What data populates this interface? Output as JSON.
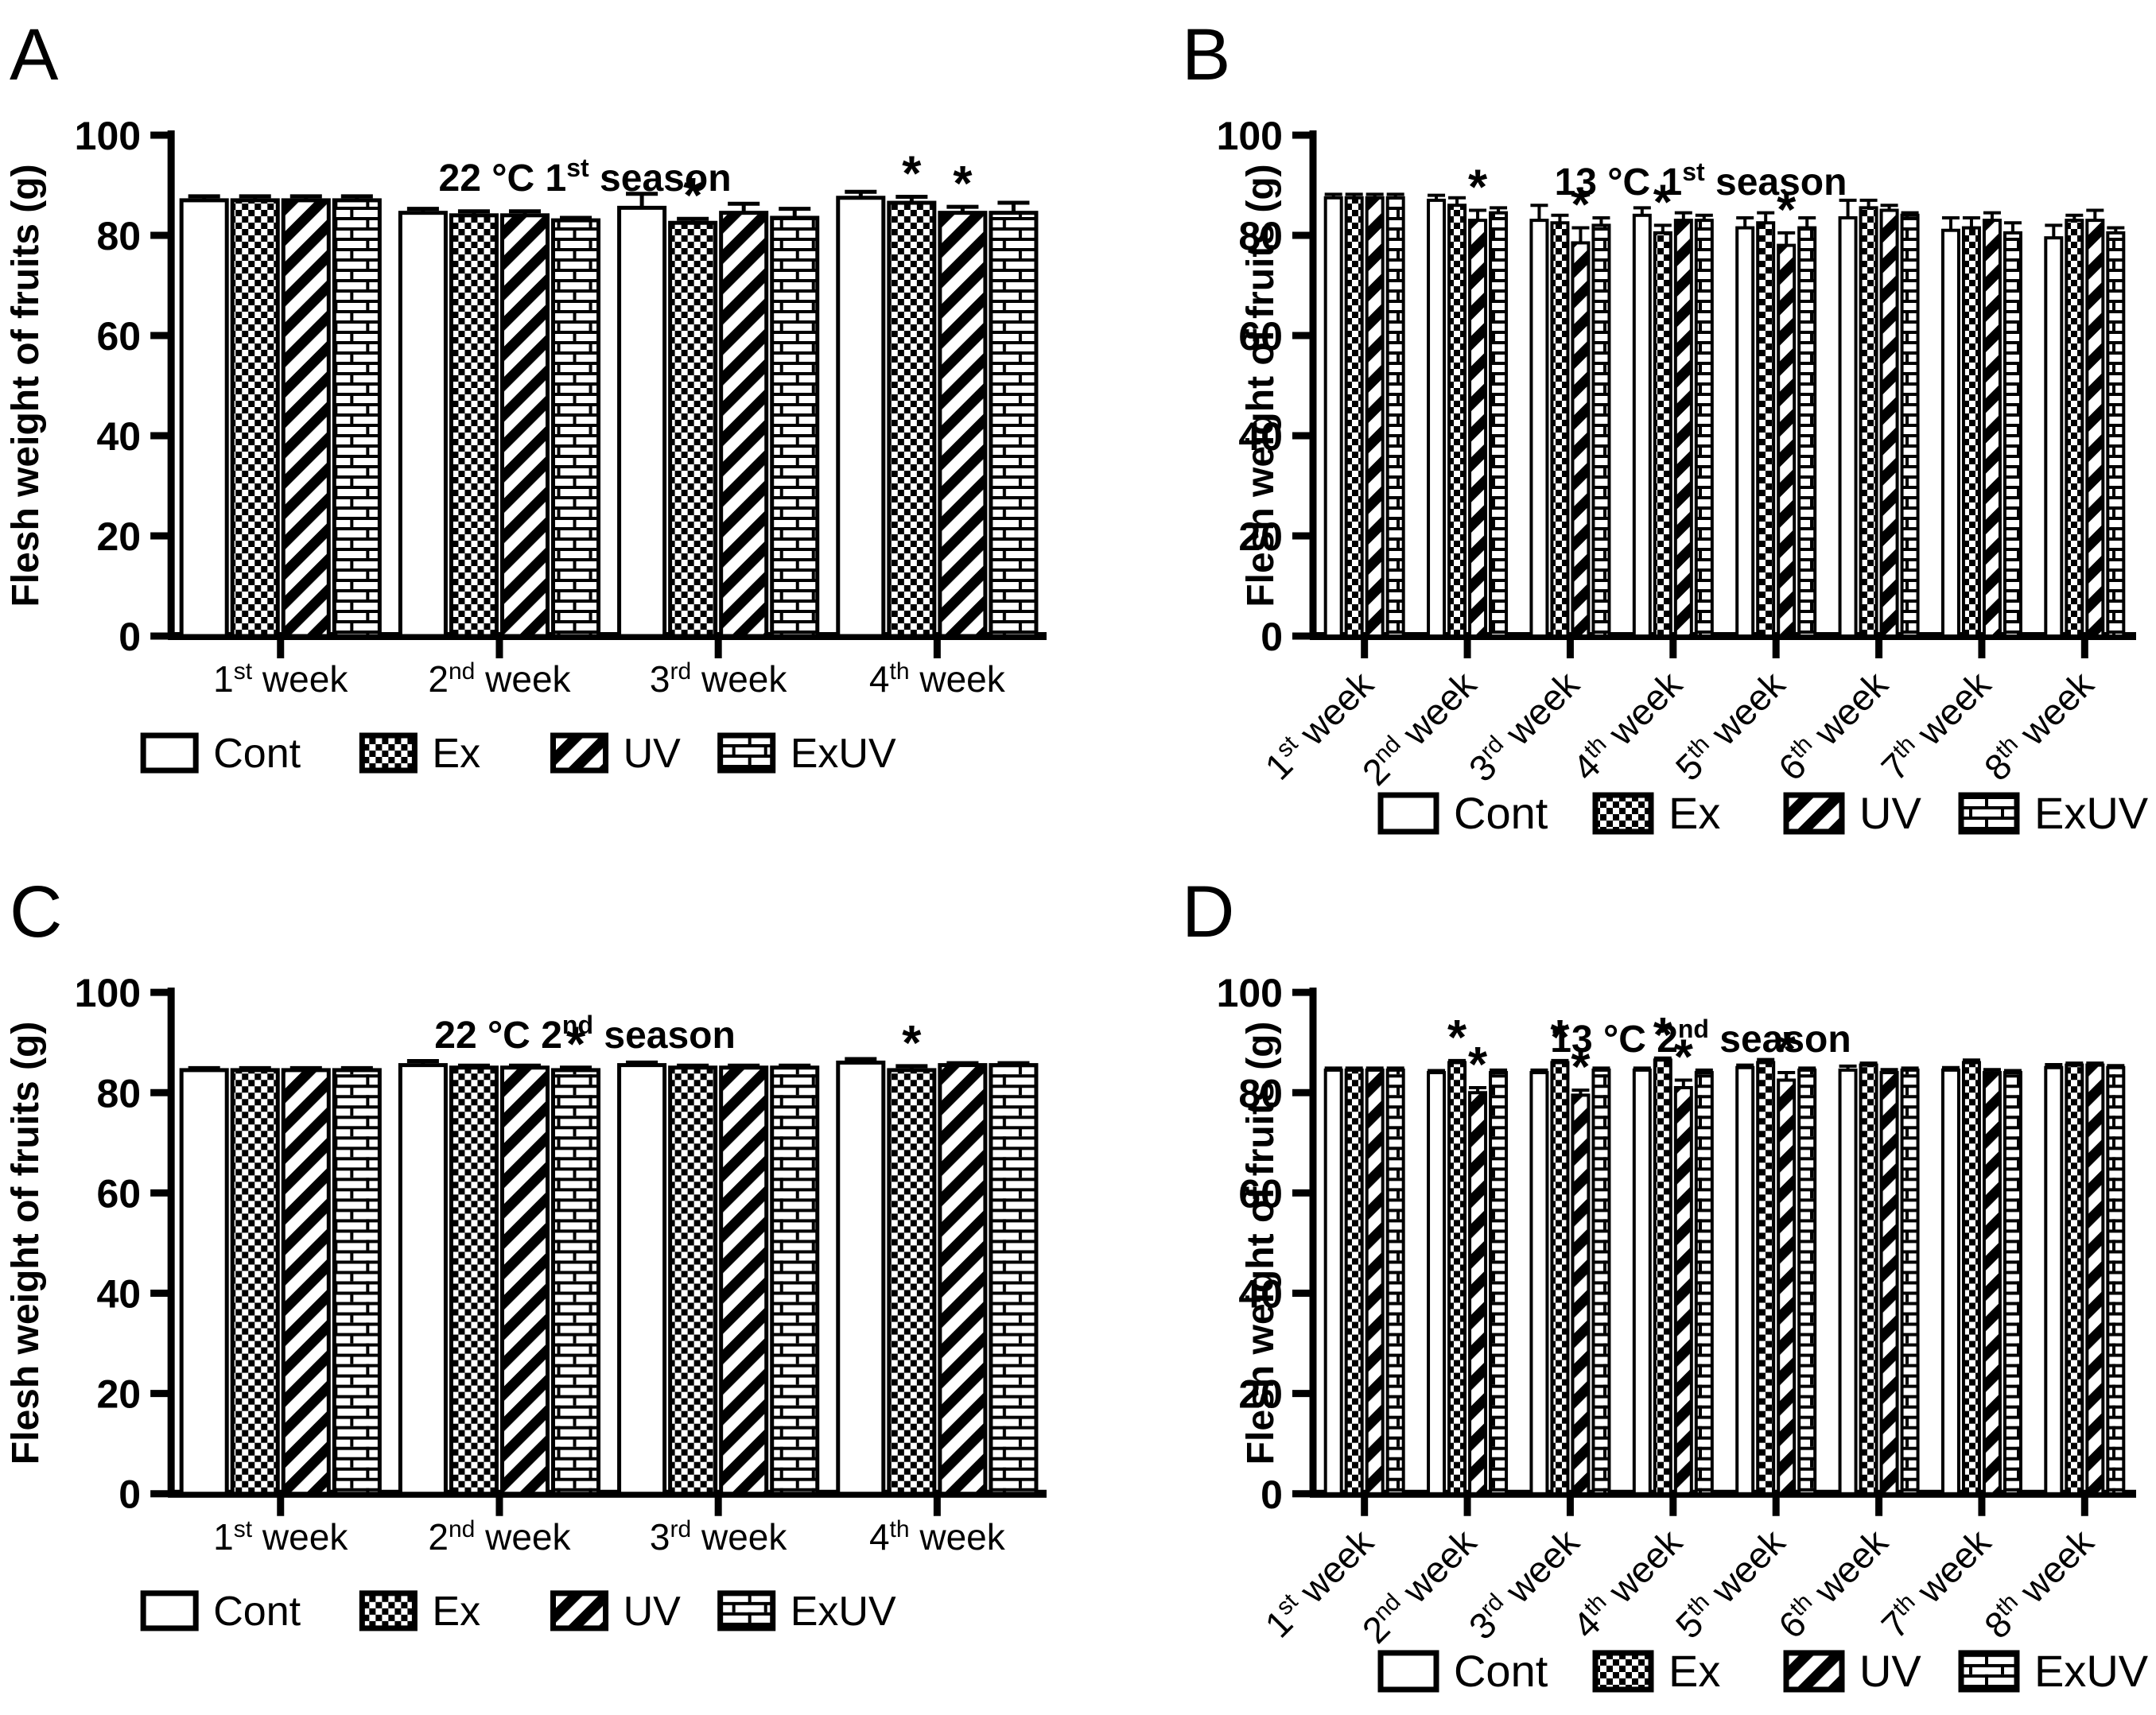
{
  "figure": {
    "background": "#ffffff",
    "ink_color": "#000000",
    "ylabel": "Flesh weight of fruits (g)",
    "legend_items": [
      {
        "label": "Cont",
        "pattern": "plain"
      },
      {
        "label": "Ex",
        "pattern": "checker"
      },
      {
        "label": "UV",
        "pattern": "diagonal"
      },
      {
        "label": "ExUV",
        "pattern": "brick"
      }
    ],
    "significance_symbol": "*"
  },
  "chart_data": [
    {
      "panel_label": "A",
      "type": "bar",
      "title_text": "22 °C 1st season",
      "title": {
        "pre": "22 °C 1",
        "sup": "st",
        "post": " season"
      },
      "ylabel": "Flesh weight of fruits (g)",
      "ylim": [
        0,
        100
      ],
      "yticks": [
        0,
        20,
        40,
        60,
        80,
        100
      ],
      "grid": "off",
      "legend_position": "bottom",
      "x_label_rotation": 0,
      "categories": [
        {
          "num": "1",
          "sup": "st",
          "word": " week",
          "text": "1st week"
        },
        {
          "num": "2",
          "sup": "nd",
          "word": " week",
          "text": "2nd week"
        },
        {
          "num": "3",
          "sup": "rd",
          "word": " week",
          "text": "3rd week"
        },
        {
          "num": "4",
          "sup": "th",
          "word": " week",
          "text": "4th week"
        }
      ],
      "series": [
        {
          "name": "Cont",
          "pattern": "plain",
          "values": [
            87,
            84.5,
            85.5,
            87.5
          ],
          "errors": [
            0.8,
            0.8,
            2.8,
            1.2
          ],
          "sig": [
            0,
            0,
            0,
            0
          ]
        },
        {
          "name": "Ex",
          "pattern": "checker",
          "values": [
            87,
            84,
            82.5,
            86.5
          ],
          "errors": [
            0.8,
            0.8,
            0.8,
            1.2
          ],
          "sig": [
            0,
            0,
            1,
            1
          ]
        },
        {
          "name": "UV",
          "pattern": "diagonal",
          "values": [
            87,
            84,
            84.5,
            84.5
          ],
          "errors": [
            0.8,
            0.8,
            1.8,
            1.2
          ],
          "sig": [
            0,
            0,
            0,
            1
          ]
        },
        {
          "name": "ExUV",
          "pattern": "brick",
          "values": [
            87,
            83,
            83.5,
            84.5
          ],
          "errors": [
            0.8,
            0.5,
            1.8,
            2.0
          ],
          "sig": [
            0,
            0,
            0,
            0
          ]
        }
      ]
    },
    {
      "panel_label": "B",
      "type": "bar",
      "title_text": "13 °C 1st season",
      "title": {
        "pre": "13 °C 1",
        "sup": "st",
        "post": " season"
      },
      "ylabel": "Flesh weight of fruits (g)",
      "ylim": [
        0,
        100
      ],
      "yticks": [
        0,
        20,
        40,
        60,
        80,
        100
      ],
      "grid": "off",
      "legend_position": "bottom",
      "x_label_rotation": -45,
      "categories": [
        {
          "num": "1",
          "sup": "st",
          "word": " week",
          "text": "1st week"
        },
        {
          "num": "2",
          "sup": "nd",
          "word": " week",
          "text": "2nd week"
        },
        {
          "num": "3",
          "sup": "rd",
          "word": " week",
          "text": "3rd week"
        },
        {
          "num": "4",
          "sup": "th",
          "word": " week",
          "text": "4th week"
        },
        {
          "num": "5",
          "sup": "th",
          "word": " week",
          "text": "5th week"
        },
        {
          "num": "6",
          "sup": "th",
          "word": " week",
          "text": "6th week"
        },
        {
          "num": "7",
          "sup": "th",
          "word": " week",
          "text": "7th week"
        },
        {
          "num": "8",
          "sup": "th",
          "word": " week",
          "text": "8th week"
        }
      ],
      "series": [
        {
          "name": "Cont",
          "pattern": "plain",
          "values": [
            87.5,
            87,
            83,
            84,
            81.5,
            83.5,
            81,
            79.5
          ],
          "errors": [
            0.7,
            1,
            3,
            1.5,
            2,
            3.5,
            2.5,
            2.5
          ],
          "sig": [
            0,
            0,
            0,
            0,
            0,
            0,
            0,
            0
          ]
        },
        {
          "name": "Ex",
          "pattern": "checker",
          "values": [
            87.5,
            86,
            82.5,
            80.5,
            82.5,
            85.5,
            81.5,
            83
          ],
          "errors": [
            0.7,
            1.5,
            1.5,
            1.5,
            2,
            1.5,
            2,
            1
          ],
          "sig": [
            0,
            0,
            0,
            1,
            0,
            0,
            0,
            0
          ]
        },
        {
          "name": "UV",
          "pattern": "diagonal",
          "values": [
            87.5,
            83,
            78.5,
            83,
            78,
            85,
            83,
            83
          ],
          "errors": [
            0.7,
            2,
            3,
            1.5,
            2.5,
            1,
            1.5,
            2
          ],
          "sig": [
            0,
            1,
            1,
            0,
            1,
            0,
            0,
            0
          ]
        },
        {
          "name": "ExUV",
          "pattern": "brick",
          "values": [
            87.5,
            84.5,
            82,
            83,
            81.5,
            84,
            80.5,
            80.5
          ],
          "errors": [
            0.7,
            1,
            1.5,
            1,
            2,
            0.5,
            2,
            1
          ],
          "sig": [
            0,
            0,
            0,
            0,
            0,
            0,
            0,
            0
          ]
        }
      ]
    },
    {
      "panel_label": "C",
      "type": "bar",
      "title_text": "22 °C 2nd season",
      "title": {
        "pre": "22 °C 2",
        "sup": "nd",
        "post": " season"
      },
      "ylabel": "Flesh weight of fruits (g)",
      "ylim": [
        0,
        100
      ],
      "yticks": [
        0,
        20,
        40,
        60,
        80,
        100
      ],
      "grid": "off",
      "legend_position": "bottom",
      "x_label_rotation": 0,
      "categories": [
        {
          "num": "1",
          "sup": "st",
          "word": " week",
          "text": "1st week"
        },
        {
          "num": "2",
          "sup": "nd",
          "word": " week",
          "text": "2nd week"
        },
        {
          "num": "3",
          "sup": "rd",
          "word": " week",
          "text": "3rd week"
        },
        {
          "num": "4",
          "sup": "th",
          "word": " week",
          "text": "4th week"
        }
      ],
      "series": [
        {
          "name": "Cont",
          "pattern": "plain",
          "values": [
            84.5,
            85.5,
            85.5,
            86
          ],
          "errors": [
            0.4,
            0.8,
            0.5,
            0.7
          ],
          "sig": [
            0,
            0,
            0,
            0
          ]
        },
        {
          "name": "Ex",
          "pattern": "checker",
          "values": [
            84.5,
            85,
            85,
            84.5
          ],
          "errors": [
            0.4,
            0.4,
            0.4,
            0.8
          ],
          "sig": [
            0,
            0,
            0,
            1
          ]
        },
        {
          "name": "UV",
          "pattern": "diagonal",
          "values": [
            84.5,
            85,
            85,
            85.5
          ],
          "errors": [
            0.4,
            0.4,
            0.4,
            0.4
          ],
          "sig": [
            0,
            0,
            0,
            0
          ]
        },
        {
          "name": "ExUV",
          "pattern": "brick",
          "values": [
            84.5,
            84.5,
            85,
            85.5
          ],
          "errors": [
            0.4,
            0.5,
            0.4,
            0.4
          ],
          "sig": [
            0,
            1,
            0,
            0
          ]
        }
      ]
    },
    {
      "panel_label": "D",
      "type": "bar",
      "title_text": "13 °C 2nd season",
      "title": {
        "pre": "13 °C 2",
        "sup": "nd",
        "post": " season"
      },
      "ylabel": "Flesh weight of fruits (g)",
      "ylim": [
        0,
        100
      ],
      "yticks": [
        0,
        20,
        40,
        60,
        80,
        100
      ],
      "grid": "off",
      "legend_position": "bottom",
      "x_label_rotation": -45,
      "categories": [
        {
          "num": "1",
          "sup": "st",
          "word": " week",
          "text": "1st week"
        },
        {
          "num": "2",
          "sup": "nd",
          "word": " week",
          "text": "2nd week"
        },
        {
          "num": "3",
          "sup": "rd",
          "word": " week",
          "text": "3rd week"
        },
        {
          "num": "4",
          "sup": "th",
          "word": " week",
          "text": "4th week"
        },
        {
          "num": "5",
          "sup": "th",
          "word": " week",
          "text": "5th week"
        },
        {
          "num": "6",
          "sup": "th",
          "word": " week",
          "text": "6th week"
        },
        {
          "num": "7",
          "sup": "th",
          "word": " week",
          "text": "7th week"
        },
        {
          "num": "8",
          "sup": "th",
          "word": " week",
          "text": "8th week"
        }
      ],
      "series": [
        {
          "name": "Cont",
          "pattern": "plain",
          "values": [
            84.5,
            84,
            84,
            84.5,
            85,
            84.5,
            84.5,
            85
          ],
          "errors": [
            0.4,
            0.4,
            0.5,
            0.4,
            0.5,
            0.8,
            0.5,
            0.6
          ],
          "sig": [
            0,
            0,
            0,
            0,
            0,
            0,
            0,
            0
          ]
        },
        {
          "name": "Ex",
          "pattern": "checker",
          "values": [
            84.5,
            86,
            86,
            86.5,
            86,
            85.5,
            86,
            85.5
          ],
          "errors": [
            0.4,
            0.4,
            0.4,
            0.4,
            0.6,
            0.4,
            0.5,
            0.4
          ],
          "sig": [
            0,
            1,
            1,
            1,
            0,
            0,
            0,
            0
          ]
        },
        {
          "name": "UV",
          "pattern": "diagonal",
          "values": [
            84.5,
            80,
            79.5,
            81,
            82.5,
            84,
            84,
            85.5
          ],
          "errors": [
            0.4,
            1,
            1,
            1.5,
            1.5,
            0.6,
            0.6,
            0.4
          ],
          "sig": [
            0,
            1,
            1,
            1,
            1,
            0,
            0,
            0
          ]
        },
        {
          "name": "ExUV",
          "pattern": "brick",
          "values": [
            84.5,
            84,
            84.5,
            84,
            84.5,
            84.5,
            84,
            85
          ],
          "errors": [
            0.4,
            0.5,
            0.4,
            0.5,
            0.4,
            0.4,
            0.4,
            0.4
          ],
          "sig": [
            0,
            0,
            0,
            0,
            0,
            0,
            0,
            0
          ]
        }
      ]
    }
  ]
}
